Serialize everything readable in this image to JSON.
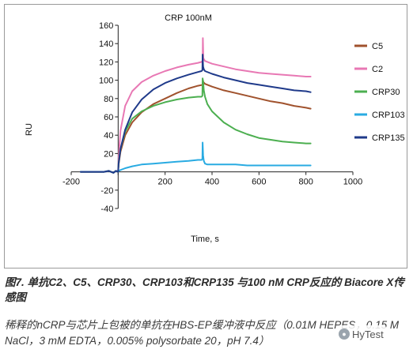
{
  "chart_data": {
    "type": "line",
    "title": "CRP 100nM",
    "xlabel": "Time, s",
    "ylabel": "RU",
    "xlim": [
      -200,
      1000
    ],
    "ylim": [
      -40,
      160
    ],
    "x_ticks": [
      -200,
      0,
      200,
      400,
      600,
      800,
      1000
    ],
    "y_ticks": [
      -40,
      -20,
      20,
      40,
      60,
      80,
      100,
      120,
      140,
      160
    ],
    "grid": false,
    "legend_position": "right",
    "series": [
      {
        "name": "C5",
        "color": "#a0522d",
        "x": [
          -160,
          -100,
          -60,
          -40,
          -20,
          -10,
          0,
          2,
          10,
          30,
          60,
          100,
          150,
          200,
          250,
          300,
          340,
          360,
          361,
          363,
          370,
          400,
          450,
          500,
          550,
          600,
          650,
          700,
          750,
          800,
          820
        ],
        "y": [
          0,
          0,
          0,
          1,
          -1,
          1,
          0,
          8,
          22,
          40,
          54,
          65,
          74,
          80,
          86,
          91,
          94,
          95,
          100,
          98,
          96,
          93,
          89,
          86,
          83,
          80,
          77,
          75,
          72,
          70,
          69
        ]
      },
      {
        "name": "C2",
        "color": "#e878b4",
        "x": [
          -160,
          -100,
          -60,
          -40,
          -20,
          -10,
          0,
          2,
          10,
          30,
          60,
          100,
          150,
          200,
          250,
          300,
          340,
          355,
          360,
          361,
          363,
          370,
          400,
          450,
          500,
          550,
          600,
          650,
          700,
          750,
          800,
          820
        ],
        "y": [
          0,
          0,
          0,
          1,
          -1,
          1,
          0,
          15,
          45,
          72,
          88,
          98,
          105,
          110,
          114,
          117,
          119,
          120,
          121,
          146,
          124,
          121,
          118,
          115,
          112,
          110,
          108,
          107,
          106,
          105,
          104,
          104
        ]
      },
      {
        "name": "CRP30",
        "color": "#4caf50",
        "x": [
          -160,
          -100,
          -60,
          -40,
          -20,
          -10,
          0,
          2,
          10,
          30,
          60,
          100,
          150,
          200,
          250,
          300,
          340,
          355,
          359,
          360,
          362,
          365,
          370,
          380,
          400,
          450,
          500,
          550,
          600,
          650,
          700,
          750,
          800,
          820
        ],
        "y": [
          0,
          0,
          0,
          1,
          -1,
          1,
          0,
          10,
          25,
          44,
          58,
          66,
          72,
          76,
          79,
          81,
          82,
          82,
          83,
          102,
          99,
          89,
          82,
          74,
          66,
          54,
          46,
          41,
          37,
          35,
          33,
          32,
          31,
          31
        ]
      },
      {
        "name": "CRP103",
        "color": "#29abe2",
        "x": [
          -160,
          -100,
          -60,
          -40,
          -20,
          -10,
          0,
          2,
          10,
          30,
          60,
          100,
          150,
          200,
          250,
          300,
          340,
          355,
          359,
          360,
          362,
          365,
          370,
          380,
          400,
          450,
          500,
          550,
          600,
          650,
          700,
          750,
          800,
          820
        ],
        "y": [
          0,
          0,
          0,
          1,
          -1,
          1,
          0,
          1,
          2,
          4,
          6,
          8,
          9,
          10,
          11,
          12,
          13,
          13,
          14,
          32,
          18,
          12,
          9,
          8,
          8,
          8,
          8,
          7,
          7,
          7,
          7,
          7,
          7,
          7
        ]
      },
      {
        "name": "CRP135",
        "color": "#1f3a8a",
        "x": [
          -160,
          -100,
          -60,
          -40,
          -20,
          -10,
          0,
          2,
          10,
          30,
          60,
          100,
          150,
          200,
          250,
          300,
          340,
          355,
          359,
          360,
          362,
          365,
          370,
          400,
          450,
          500,
          550,
          600,
          650,
          700,
          750,
          800,
          820
        ],
        "y": [
          0,
          0,
          0,
          1,
          -1,
          1,
          0,
          9,
          25,
          46,
          65,
          79,
          90,
          97,
          102,
          106,
          109,
          110,
          111,
          128,
          115,
          112,
          110,
          107,
          103,
          100,
          97,
          95,
          93,
          91,
          89,
          88,
          87
        ]
      }
    ]
  },
  "caption": {
    "title": "图7. 单抗C2、C5、CRP30、CRP103和CRP135 与100 nM CRP反应的 Biacore X传感图",
    "body": "稀释的nCRP与芯片上包被的单抗在HBS-EP缓冲液中反应（0.01M HEPES，0.15 M NaCl，3 mM EDTA，0.005% polysorbate 20，pH 7.4）"
  },
  "watermark": {
    "text": "HyTest"
  }
}
